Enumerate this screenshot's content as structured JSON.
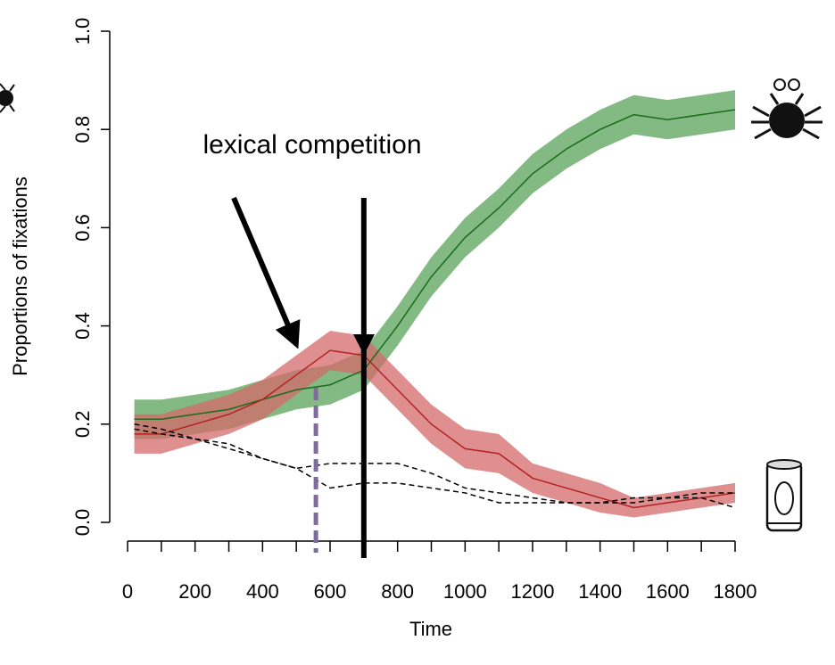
{
  "chart_data": {
    "type": "line",
    "annotation": "lexical competition",
    "xlabel": "Time",
    "ylabel": "Proportions of fixations",
    "x": [
      20,
      100,
      200,
      300,
      400,
      500,
      600,
      700,
      800,
      900,
      1000,
      1100,
      1200,
      1300,
      1400,
      1500,
      1600,
      1700,
      1800
    ],
    "series": [
      {
        "color": "#1a6b1a",
        "band_color": "#5aa35a",
        "style": "solid",
        "values": [
          0.21,
          0.21,
          0.22,
          0.23,
          0.25,
          0.27,
          0.28,
          0.31,
          0.4,
          0.5,
          0.58,
          0.64,
          0.71,
          0.76,
          0.8,
          0.83,
          0.82,
          0.83,
          0.84
        ],
        "lower": [
          0.17,
          0.17,
          0.18,
          0.19,
          0.21,
          0.23,
          0.24,
          0.27,
          0.36,
          0.46,
          0.54,
          0.6,
          0.67,
          0.72,
          0.76,
          0.79,
          0.78,
          0.79,
          0.8
        ],
        "upper": [
          0.25,
          0.25,
          0.26,
          0.27,
          0.29,
          0.31,
          0.32,
          0.35,
          0.44,
          0.54,
          0.62,
          0.68,
          0.75,
          0.8,
          0.84,
          0.87,
          0.86,
          0.87,
          0.88
        ]
      },
      {
        "color": "#b22222",
        "band_color": "#d46a6a",
        "style": "solid",
        "values": [
          0.18,
          0.18,
          0.2,
          0.22,
          0.25,
          0.3,
          0.35,
          0.34,
          0.27,
          0.2,
          0.15,
          0.14,
          0.09,
          0.07,
          0.05,
          0.03,
          0.04,
          0.05,
          0.06
        ],
        "lower": [
          0.14,
          0.14,
          0.16,
          0.18,
          0.21,
          0.26,
          0.31,
          0.3,
          0.23,
          0.16,
          0.11,
          0.1,
          0.06,
          0.04,
          0.02,
          0.01,
          0.02,
          0.03,
          0.04
        ],
        "upper": [
          0.22,
          0.22,
          0.24,
          0.26,
          0.29,
          0.34,
          0.39,
          0.38,
          0.31,
          0.24,
          0.19,
          0.18,
          0.12,
          0.1,
          0.08,
          0.05,
          0.06,
          0.07,
          0.08
        ]
      },
      {
        "color": "#000000",
        "style": "dashed",
        "values": [
          0.2,
          0.19,
          0.17,
          0.16,
          0.13,
          0.11,
          0.12,
          0.12,
          0.12,
          0.1,
          0.07,
          0.06,
          0.05,
          0.04,
          0.04,
          0.05,
          0.05,
          0.05,
          0.03
        ]
      },
      {
        "color": "#000000",
        "style": "dashed",
        "values": [
          0.19,
          0.18,
          0.17,
          0.15,
          0.13,
          0.11,
          0.07,
          0.08,
          0.08,
          0.07,
          0.06,
          0.04,
          0.04,
          0.04,
          0.04,
          0.04,
          0.05,
          0.06,
          0.06
        ]
      }
    ],
    "markers": [
      {
        "x": 558,
        "color": "#7f6c9e",
        "style": "dashed"
      },
      {
        "x": 700,
        "color": "#000000",
        "style": "solid"
      }
    ],
    "xlim": [
      0,
      1800
    ],
    "xticks": [
      0,
      200,
      400,
      600,
      800,
      1000,
      1200,
      1400,
      1600,
      1800
    ],
    "xminor_ticks": [
      100,
      300,
      500,
      700,
      900,
      1100,
      1300,
      1500,
      1700
    ],
    "ylim": [
      0,
      1
    ],
    "yticks": [
      {
        "value": 0,
        "label": "0.0"
      },
      0.2,
      0.4,
      0.6,
      0.8,
      {
        "value": 1,
        "label": "1.0"
      }
    ]
  }
}
